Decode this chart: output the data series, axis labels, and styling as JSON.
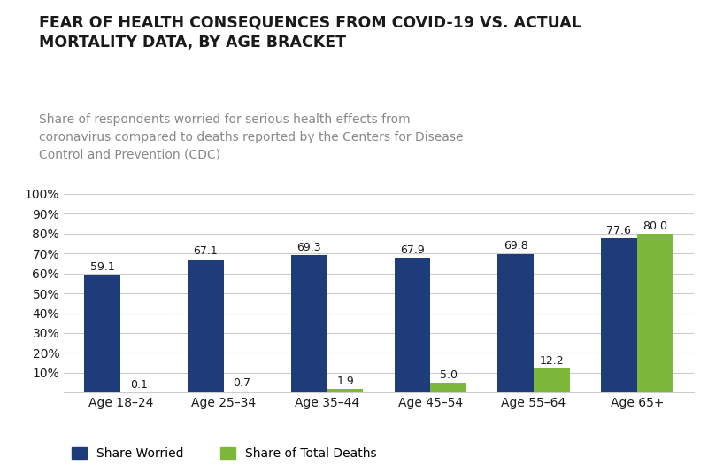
{
  "title": "FEAR OF HEALTH CONSEQUENCES FROM COVID-19 VS. ACTUAL\nMORTALITY DATA, BY AGE BRACKET",
  "subtitle": "Share of respondents worried for serious health effects from\ncoronavirus compared to deaths reported by the Centers for Disease\nControl and Prevention (CDC)",
  "categories": [
    "Age 18–24",
    "Age 25–34",
    "Age 35–44",
    "Age 45–54",
    "Age 55–64",
    "Age 65+"
  ],
  "share_worried": [
    59.1,
    67.1,
    69.3,
    67.9,
    69.8,
    77.6
  ],
  "share_deaths": [
    0.1,
    0.7,
    1.9,
    5.0,
    12.2,
    80.0
  ],
  "bar_color_worried": "#1f3c7a",
  "bar_color_deaths": "#7db83a",
  "ylim": [
    0,
    100
  ],
  "yticks": [
    10,
    20,
    30,
    40,
    50,
    60,
    70,
    80,
    90,
    100
  ],
  "ytick_labels": [
    "10%",
    "20%",
    "30%",
    "40%",
    "50%",
    "60%",
    "70%",
    "80%",
    "90%",
    "100%"
  ],
  "legend_worried": "Share Worried",
  "legend_deaths": "Share of Total Deaths",
  "title_fontsize": 12.5,
  "subtitle_fontsize": 10,
  "tick_fontsize": 10,
  "label_fontsize": 9,
  "bar_width": 0.35,
  "background_color": "#ffffff",
  "grid_color": "#cccccc",
  "title_color": "#1a1a1a",
  "subtitle_color": "#888888"
}
